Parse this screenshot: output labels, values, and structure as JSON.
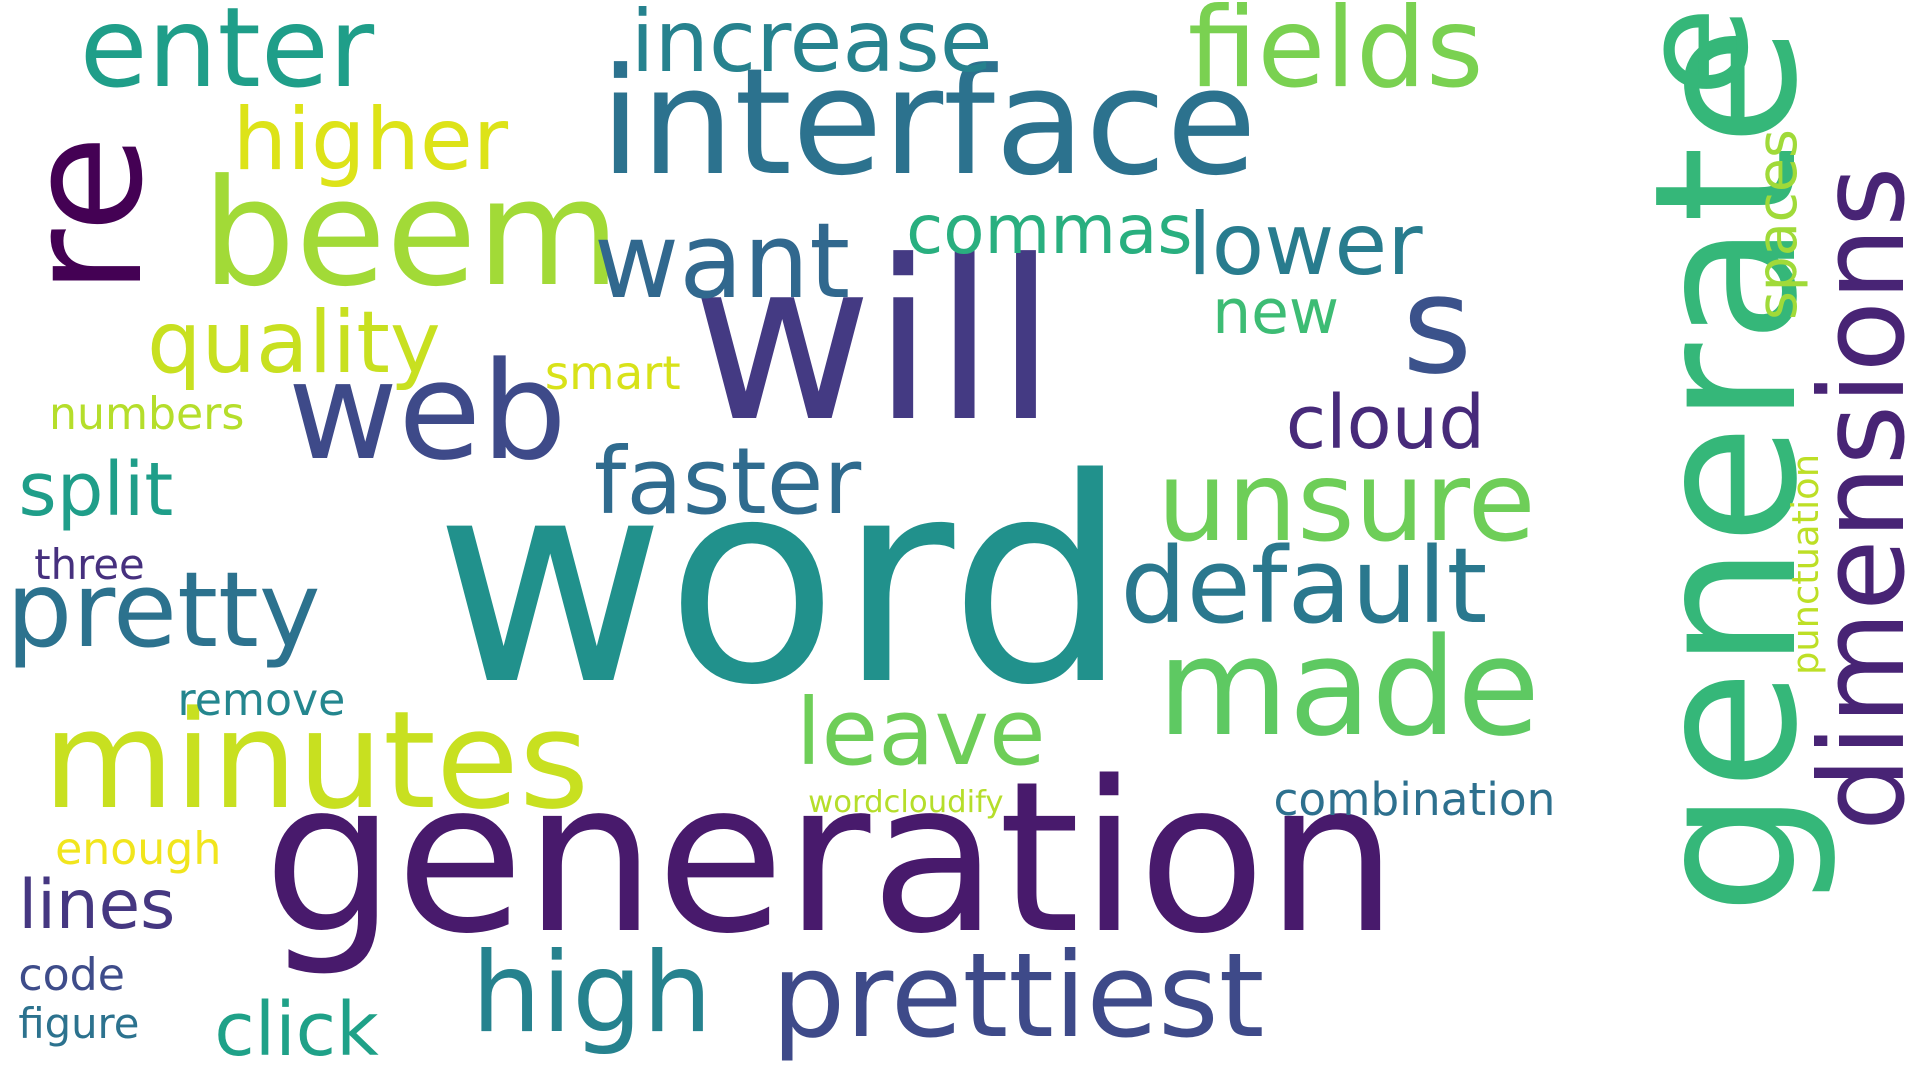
{
  "words": [
    {
      "text": "word",
      "color": "#21918c"
    },
    {
      "text": "generation",
      "color": "#481a6c"
    },
    {
      "text": "generate",
      "color": "#35b779"
    },
    {
      "text": "will",
      "color": "#443a83"
    },
    {
      "text": "interface",
      "color": "#2c728e"
    },
    {
      "text": "re",
      "color": "#440154"
    },
    {
      "text": "beem",
      "color": "#a2da37"
    },
    {
      "text": "web",
      "color": "#3e4a89"
    },
    {
      "text": "minutes",
      "color": "#c8e020"
    },
    {
      "text": "e",
      "color": "#35b779"
    },
    {
      "text": "s",
      "color": "#3b528b"
    },
    {
      "text": "made",
      "color": "#5ec962"
    },
    {
      "text": "dimensions",
      "color": "#482475"
    },
    {
      "text": "prettiest",
      "color": "#3e4a89"
    },
    {
      "text": "enter",
      "color": "#1f9e89"
    },
    {
      "text": "fields",
      "color": "#7ad151"
    },
    {
      "text": "want",
      "color": "#31688e"
    },
    {
      "text": "unsure",
      "color": "#6ece58"
    },
    {
      "text": "default",
      "color": "#2a788e"
    },
    {
      "text": "pretty",
      "color": "#2c728e"
    },
    {
      "text": "high",
      "color": "#26828e"
    },
    {
      "text": "increase",
      "color": "#26828e"
    },
    {
      "text": "higher",
      "color": "#dde318"
    },
    {
      "text": "lower",
      "color": "#287c8e"
    },
    {
      "text": "faster",
      "color": "#2f6b8e"
    },
    {
      "text": "leave",
      "color": "#6ece58"
    },
    {
      "text": "quality",
      "color": "#c8e020"
    },
    {
      "text": "commas",
      "color": "#29af7f"
    },
    {
      "text": "cloud",
      "color": "#472a7a"
    },
    {
      "text": "split",
      "color": "#1f9e89"
    },
    {
      "text": "click",
      "color": "#1fa188"
    },
    {
      "text": "lines",
      "color": "#453781"
    },
    {
      "text": "spaces",
      "color": "#a0da39"
    },
    {
      "text": "new",
      "color": "#3dbc74"
    },
    {
      "text": "smart",
      "color": "#d8e219"
    },
    {
      "text": "numbers",
      "color": "#b5de2b"
    },
    {
      "text": "three",
      "color": "#46307e"
    },
    {
      "text": "remove",
      "color": "#24868e"
    },
    {
      "text": "combination",
      "color": "#2d708e"
    },
    {
      "text": "punctuation",
      "color": "#bddf26"
    },
    {
      "text": "wordcloudify",
      "color": "#b5de2b"
    },
    {
      "text": "enough",
      "color": "#f1e51d"
    },
    {
      "text": "code",
      "color": "#3e4c8a"
    },
    {
      "text": "figure",
      "color": "#2c728e"
    }
  ]
}
